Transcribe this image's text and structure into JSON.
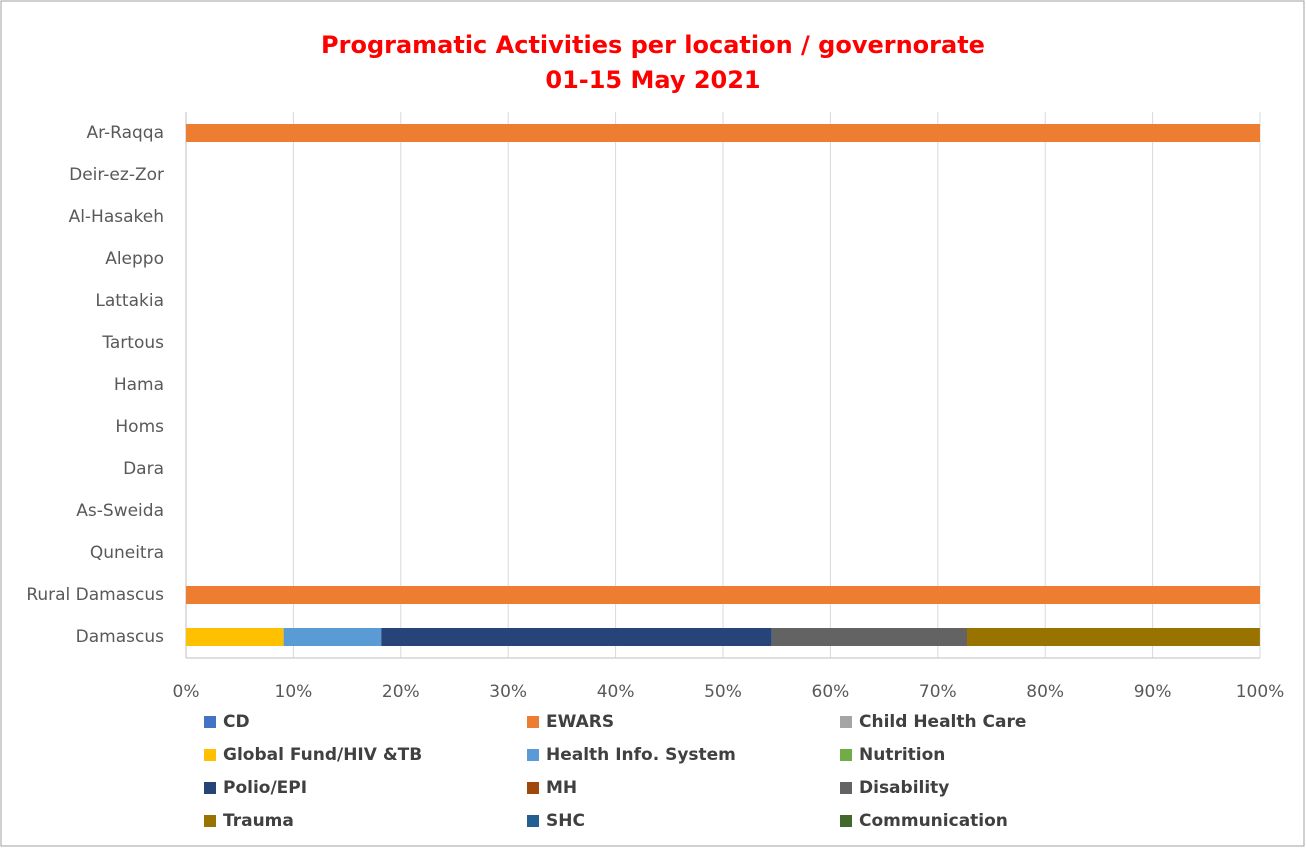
{
  "chart_data": {
    "type": "stacked-bar-horizontal",
    "title": "Programatic Activities per location / governorate",
    "subtitle": "01-15 May 2021",
    "categories": [
      "Ar-Raqqa",
      "Deir-ez-Zor",
      "Al-Hasakeh",
      "Aleppo",
      "Lattakia",
      "Tartous",
      "Hama",
      "Homs",
      "Dara",
      "As-Sweida",
      "Quneitra",
      "Rural Damascus",
      "Damascus"
    ],
    "series": [
      {
        "name": "CD",
        "color": "#4472c4",
        "values": [
          0,
          0,
          0,
          0,
          0,
          0,
          0,
          0,
          0,
          0,
          0,
          0,
          0
        ]
      },
      {
        "name": "EWARS",
        "color": "#ed7d31",
        "values": [
          100,
          0,
          0,
          0,
          0,
          0,
          0,
          0,
          0,
          0,
          0,
          100,
          0
        ]
      },
      {
        "name": "Child Health Care",
        "color": "#a5a5a5",
        "values": [
          0,
          0,
          0,
          0,
          0,
          0,
          0,
          0,
          0,
          0,
          0,
          0,
          0
        ]
      },
      {
        "name": "Global Fund/HIV &TB",
        "color": "#ffc000",
        "values": [
          0,
          0,
          0,
          0,
          0,
          0,
          0,
          0,
          0,
          0,
          0,
          0,
          9.09
        ]
      },
      {
        "name": "Health Info. System",
        "color": "#5b9bd5",
        "values": [
          0,
          0,
          0,
          0,
          0,
          0,
          0,
          0,
          0,
          0,
          0,
          0,
          9.09
        ]
      },
      {
        "name": "Nutrition",
        "color": "#70ad47",
        "values": [
          0,
          0,
          0,
          0,
          0,
          0,
          0,
          0,
          0,
          0,
          0,
          0,
          0
        ]
      },
      {
        "name": "Polio/EPI",
        "color": "#264478",
        "values": [
          0,
          0,
          0,
          0,
          0,
          0,
          0,
          0,
          0,
          0,
          0,
          0,
          36.36
        ]
      },
      {
        "name": "MH",
        "color": "#9e480e",
        "values": [
          0,
          0,
          0,
          0,
          0,
          0,
          0,
          0,
          0,
          0,
          0,
          0,
          0
        ]
      },
      {
        "name": "Disability",
        "color": "#636363",
        "values": [
          0,
          0,
          0,
          0,
          0,
          0,
          0,
          0,
          0,
          0,
          0,
          0,
          18.18
        ]
      },
      {
        "name": "Trauma",
        "color": "#997300",
        "values": [
          0,
          0,
          0,
          0,
          0,
          0,
          0,
          0,
          0,
          0,
          0,
          0,
          27.27
        ]
      },
      {
        "name": "SHC",
        "color": "#255e91",
        "values": [
          0,
          0,
          0,
          0,
          0,
          0,
          0,
          0,
          0,
          0,
          0,
          0,
          0
        ]
      },
      {
        "name": "Communication",
        "color": "#43682b",
        "values": [
          0,
          0,
          0,
          0,
          0,
          0,
          0,
          0,
          0,
          0,
          0,
          0,
          0
        ]
      }
    ],
    "xlim": [
      0,
      100
    ],
    "xticks": [
      {
        "value": 0,
        "label": "0%"
      },
      {
        "value": 10,
        "label": "10%"
      },
      {
        "value": 20,
        "label": "20%"
      },
      {
        "value": 30,
        "label": "30%"
      },
      {
        "value": 40,
        "label": "40%"
      },
      {
        "value": 50,
        "label": "50%"
      },
      {
        "value": 60,
        "label": "60%"
      },
      {
        "value": 70,
        "label": "70%"
      },
      {
        "value": 80,
        "label": "80%"
      },
      {
        "value": 90,
        "label": "90%"
      },
      {
        "value": 100,
        "label": "100%"
      }
    ],
    "grid": true,
    "legend": "bottom"
  }
}
